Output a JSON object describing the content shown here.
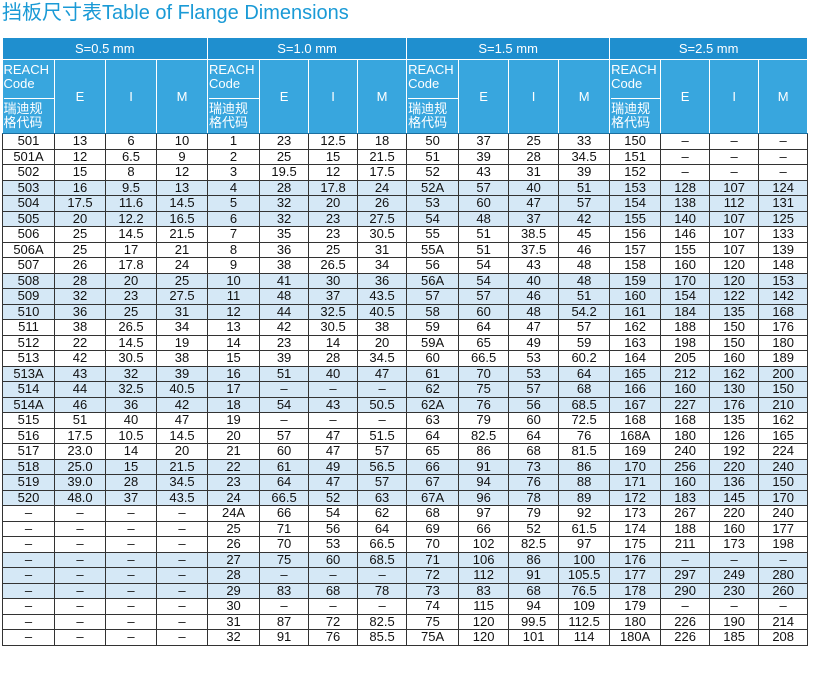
{
  "title": "挡板尺寸表Table of Flange Dimensions",
  "groups": [
    "S=0.5 mm",
    "S=1.0 mm",
    "S=1.5 mm",
    "S=2.5 mm"
  ],
  "code_en": "REACH\nCode",
  "code_cn": "瑞迪规\n格代码",
  "subheaders": [
    "E",
    "I",
    "M"
  ],
  "highlight_color": "#d5e8f6",
  "header_color": "#1f8fcf",
  "rows": [
    [
      "501",
      "13",
      "6",
      "10",
      "1",
      "23",
      "12.5",
      "18",
      "50",
      "37",
      "25",
      "33",
      "150",
      "–",
      "–",
      "–"
    ],
    [
      "501A",
      "12",
      "6.5",
      "9",
      "2",
      "25",
      "15",
      "21.5",
      "51",
      "39",
      "28",
      "34.5",
      "151",
      "–",
      "–",
      "–"
    ],
    [
      "502",
      "15",
      "8",
      "12",
      "3",
      "19.5",
      "12",
      "17.5",
      "52",
      "43",
      "31",
      "39",
      "152",
      "–",
      "–",
      "–"
    ],
    [
      "503",
      "16",
      "9.5",
      "13",
      "4",
      "28",
      "17.8",
      "24",
      "52A",
      "57",
      "40",
      "51",
      "153",
      "128",
      "107",
      "124"
    ],
    [
      "504",
      "17.5",
      "11.6",
      "14.5",
      "5",
      "32",
      "20",
      "26",
      "53",
      "60",
      "47",
      "57",
      "154",
      "138",
      "112",
      "131"
    ],
    [
      "505",
      "20",
      "12.2",
      "16.5",
      "6",
      "32",
      "23",
      "27.5",
      "54",
      "48",
      "37",
      "42",
      "155",
      "140",
      "107",
      "125"
    ],
    [
      "506",
      "25",
      "14.5",
      "21.5",
      "7",
      "35",
      "23",
      "30.5",
      "55",
      "51",
      "38.5",
      "45",
      "156",
      "146",
      "107",
      "133"
    ],
    [
      "506A",
      "25",
      "17",
      "21",
      "8",
      "36",
      "25",
      "31",
      "55A",
      "51",
      "37.5",
      "46",
      "157",
      "155",
      "107",
      "139"
    ],
    [
      "507",
      "26",
      "17.8",
      "24",
      "9",
      "38",
      "26.5",
      "34",
      "56",
      "54",
      "43",
      "48",
      "158",
      "160",
      "120",
      "148"
    ],
    [
      "508",
      "28",
      "20",
      "25",
      "10",
      "41",
      "30",
      "36",
      "56A",
      "54",
      "40",
      "48",
      "159",
      "170",
      "120",
      "153"
    ],
    [
      "509",
      "32",
      "23",
      "27.5",
      "11",
      "48",
      "37",
      "43.5",
      "57",
      "57",
      "46",
      "51",
      "160",
      "154",
      "122",
      "142"
    ],
    [
      "510",
      "36",
      "25",
      "31",
      "12",
      "44",
      "32.5",
      "40.5",
      "58",
      "60",
      "48",
      "54.2",
      "161",
      "184",
      "135",
      "168"
    ],
    [
      "511",
      "38",
      "26.5",
      "34",
      "13",
      "42",
      "30.5",
      "38",
      "59",
      "64",
      "47",
      "57",
      "162",
      "188",
      "150",
      "176"
    ],
    [
      "512",
      "22",
      "14.5",
      "19",
      "14",
      "23",
      "14",
      "20",
      "59A",
      "65",
      "49",
      "59",
      "163",
      "198",
      "150",
      "180"
    ],
    [
      "513",
      "42",
      "30.5",
      "38",
      "15",
      "39",
      "28",
      "34.5",
      "60",
      "66.5",
      "53",
      "60.2",
      "164",
      "205",
      "160",
      "189"
    ],
    [
      "513A",
      "43",
      "32",
      "39",
      "16",
      "51",
      "40",
      "47",
      "61",
      "70",
      "53",
      "64",
      "165",
      "212",
      "162",
      "200"
    ],
    [
      "514",
      "44",
      "32.5",
      "40.5",
      "17",
      "–",
      "–",
      "–",
      "62",
      "75",
      "57",
      "68",
      "166",
      "160",
      "130",
      "150"
    ],
    [
      "514A",
      "46",
      "36",
      "42",
      "18",
      "54",
      "43",
      "50.5",
      "62A",
      "76",
      "56",
      "68.5",
      "167",
      "227",
      "176",
      "210"
    ],
    [
      "515",
      "51",
      "40",
      "47",
      "19",
      "–",
      "–",
      "–",
      "63",
      "79",
      "60",
      "72.5",
      "168",
      "168",
      "135",
      "162"
    ],
    [
      "516",
      "17.5",
      "10.5",
      "14.5",
      "20",
      "57",
      "47",
      "51.5",
      "64",
      "82.5",
      "64",
      "76",
      "168A",
      "180",
      "126",
      "165"
    ],
    [
      "517",
      "23.0",
      "14",
      "20",
      "21",
      "60",
      "47",
      "57",
      "65",
      "86",
      "68",
      "81.5",
      "169",
      "240",
      "192",
      "224"
    ],
    [
      "518",
      "25.0",
      "15",
      "21.5",
      "22",
      "61",
      "49",
      "56.5",
      "66",
      "91",
      "73",
      "86",
      "170",
      "256",
      "220",
      "240"
    ],
    [
      "519",
      "39.0",
      "28",
      "34.5",
      "23",
      "64",
      "47",
      "57",
      "67",
      "94",
      "76",
      "88",
      "171",
      "160",
      "136",
      "150"
    ],
    [
      "520",
      "48.0",
      "37",
      "43.5",
      "24",
      "66.5",
      "52",
      "63",
      "67A",
      "96",
      "78",
      "89",
      "172",
      "183",
      "145",
      "170"
    ],
    [
      "–",
      "–",
      "–",
      "–",
      "24A",
      "66",
      "54",
      "62",
      "68",
      "97",
      "79",
      "92",
      "173",
      "267",
      "220",
      "240"
    ],
    [
      "–",
      "–",
      "–",
      "–",
      "25",
      "71",
      "56",
      "64",
      "69",
      "66",
      "52",
      "61.5",
      "174",
      "188",
      "160",
      "177"
    ],
    [
      "–",
      "–",
      "–",
      "–",
      "26",
      "70",
      "53",
      "66.5",
      "70",
      "102",
      "82.5",
      "97",
      "175",
      "211",
      "173",
      "198"
    ],
    [
      "–",
      "–",
      "–",
      "–",
      "27",
      "75",
      "60",
      "68.5",
      "71",
      "106",
      "86",
      "100",
      "176",
      "–",
      "–",
      "–"
    ],
    [
      "–",
      "–",
      "–",
      "–",
      "28",
      "–",
      "–",
      "–",
      "72",
      "112",
      "91",
      "105.5",
      "177",
      "297",
      "249",
      "280"
    ],
    [
      "–",
      "–",
      "–",
      "–",
      "29",
      "83",
      "68",
      "78",
      "73",
      "83",
      "68",
      "76.5",
      "178",
      "290",
      "230",
      "260"
    ],
    [
      "–",
      "–",
      "–",
      "–",
      "30",
      "–",
      "–",
      "–",
      "74",
      "115",
      "94",
      "109",
      "179",
      "–",
      "–",
      "–"
    ],
    [
      "–",
      "–",
      "–",
      "–",
      "31",
      "87",
      "72",
      "82.5",
      "75",
      "120",
      "99.5",
      "112.5",
      "180",
      "226",
      "190",
      "214"
    ],
    [
      "–",
      "–",
      "–",
      "–",
      "32",
      "91",
      "76",
      "85.5",
      "75A",
      "120",
      "101",
      "114",
      "180A",
      "226",
      "185",
      "208"
    ]
  ],
  "highlight_rows": [
    3,
    4,
    5,
    9,
    10,
    11,
    15,
    16,
    17,
    21,
    22,
    23,
    27,
    28,
    29
  ]
}
